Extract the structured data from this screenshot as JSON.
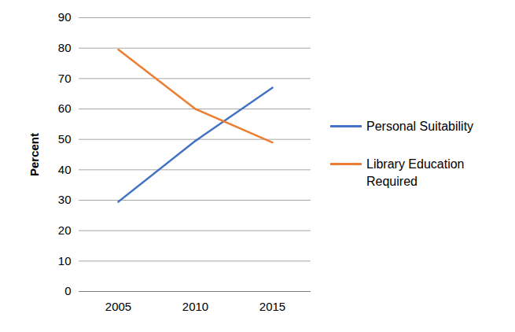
{
  "chart_data": {
    "type": "line",
    "y_label": "Percent",
    "categories": [
      "2005",
      "2010",
      "2015"
    ],
    "series": [
      {
        "name": "Personal Suitability",
        "color": "#4472c4",
        "values": [
          29.5,
          49.5,
          67
        ]
      },
      {
        "name": "Library Education Required",
        "color": "#ed7d31",
        "values": [
          79.5,
          60,
          49
        ]
      }
    ],
    "ylim": [
      0,
      90
    ],
    "yticks": [
      0,
      10,
      20,
      30,
      40,
      50,
      60,
      70,
      80,
      90
    ],
    "grid": true,
    "legend": "right"
  }
}
